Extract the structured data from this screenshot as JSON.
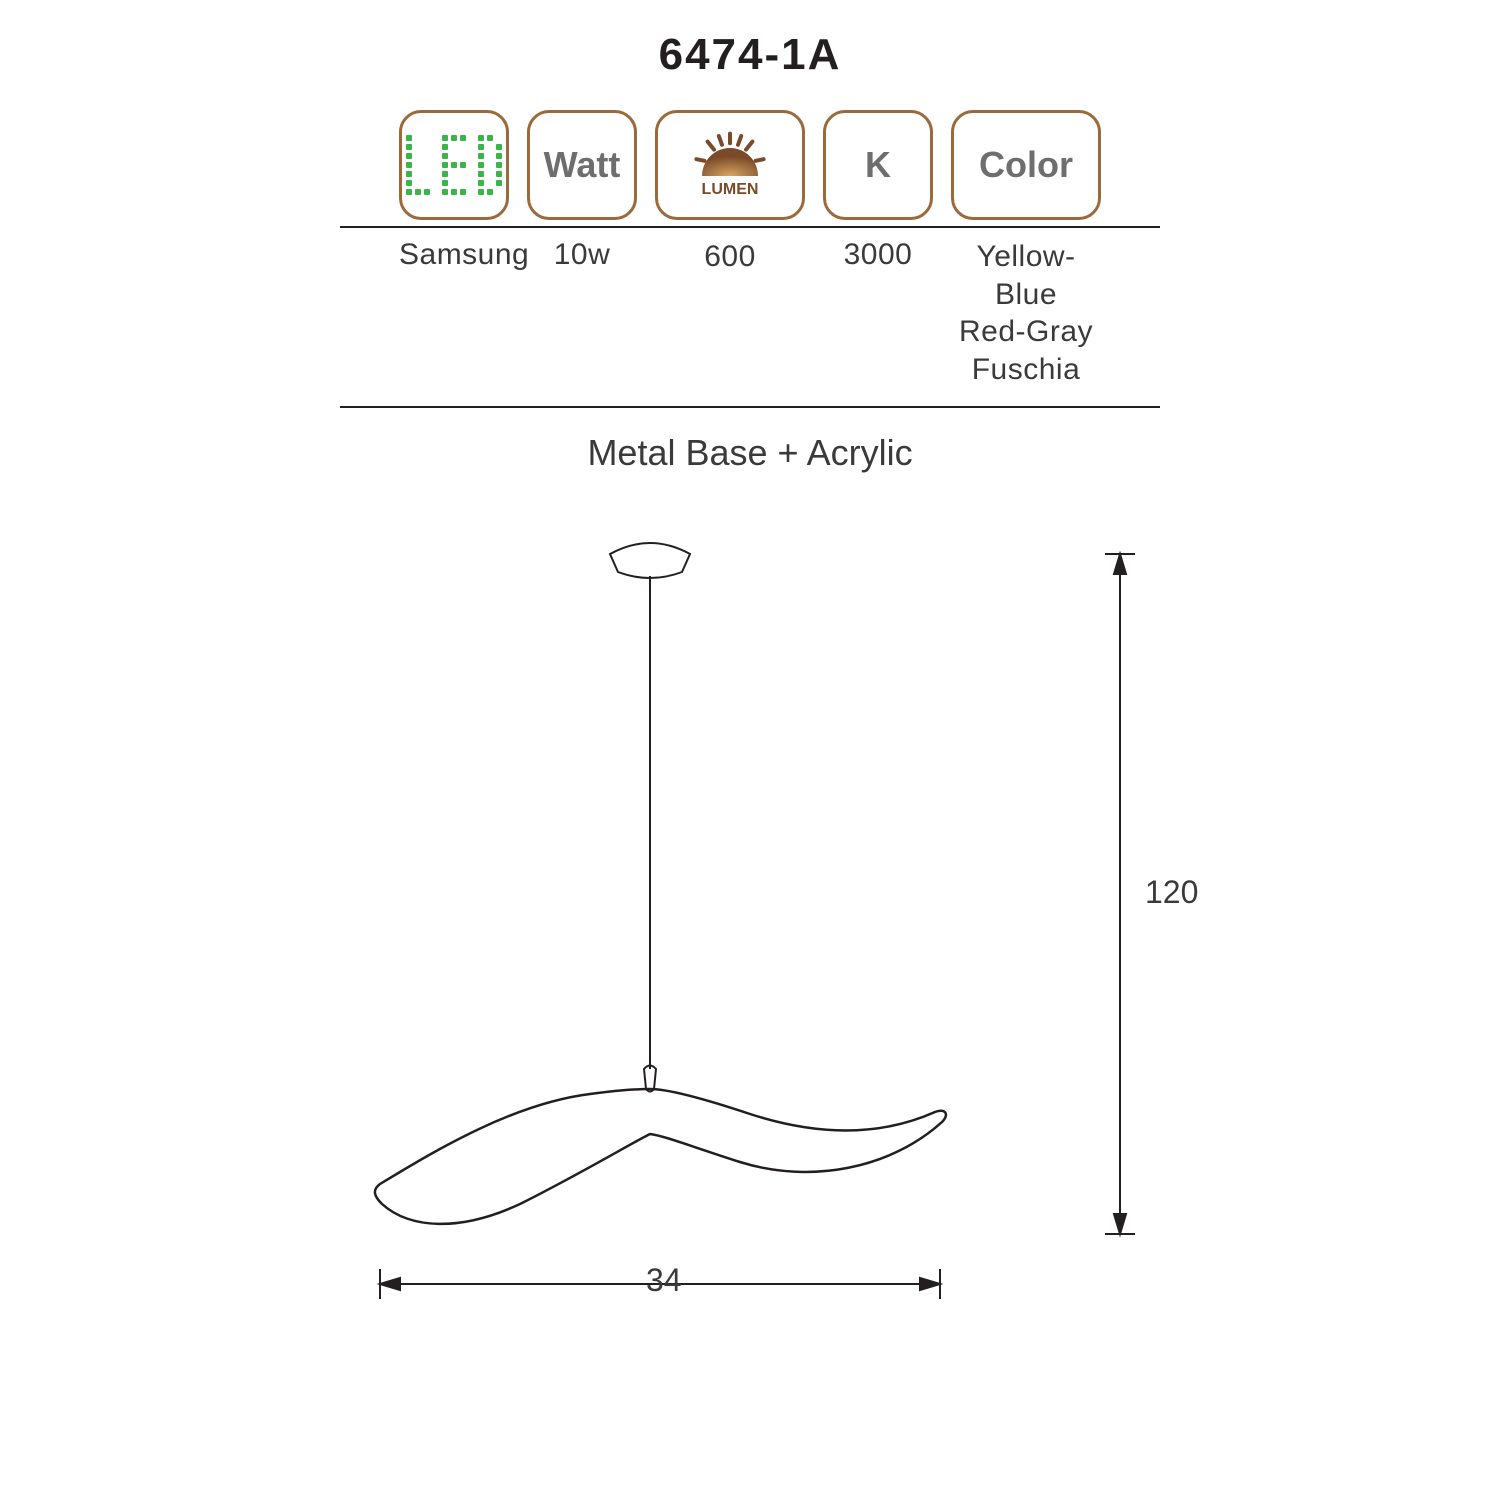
{
  "model": "6474-1A",
  "badge_border": "#9b6a3b",
  "badge_text": "#6e6e6e",
  "led_green": "#39b54a",
  "lumen_brown": "#8a5a2e",
  "line_color": "#231f20",
  "badges": {
    "led": "LED",
    "watt": "Watt",
    "lumen": "LUMEN",
    "kelvin": "K",
    "color": "Color"
  },
  "values": {
    "led": "Samsung",
    "watt": "10w",
    "lumen": "600",
    "kelvin": "3000",
    "color_l1": "Yellow-Blue",
    "color_l2": "Red-Gray",
    "color_l3": "Fuschia"
  },
  "material": "Metal Base + Acrylic",
  "dimensions": {
    "width": "34",
    "height": "120"
  },
  "led_matrix_cols": 11,
  "led_matrix_rows": 7,
  "led_letters": {
    "L": [
      [
        0,
        0
      ],
      [
        1,
        0
      ],
      [
        2,
        0
      ],
      [
        3,
        0
      ],
      [
        4,
        0
      ],
      [
        5,
        0
      ],
      [
        6,
        0
      ],
      [
        6,
        1
      ],
      [
        6,
        2
      ]
    ],
    "E": [
      [
        0,
        4
      ],
      [
        0,
        5
      ],
      [
        0,
        6
      ],
      [
        1,
        4
      ],
      [
        2,
        4
      ],
      [
        3,
        4
      ],
      [
        3,
        5
      ],
      [
        3,
        6
      ],
      [
        4,
        4
      ],
      [
        5,
        4
      ],
      [
        6,
        4
      ],
      [
        6,
        5
      ],
      [
        6,
        6
      ]
    ],
    "D": [
      [
        0,
        8
      ],
      [
        0,
        9
      ],
      [
        1,
        8
      ],
      [
        1,
        10
      ],
      [
        2,
        8
      ],
      [
        2,
        10
      ],
      [
        3,
        8
      ],
      [
        3,
        10
      ],
      [
        4,
        8
      ],
      [
        4,
        10
      ],
      [
        5,
        8
      ],
      [
        5,
        10
      ],
      [
        6,
        8
      ],
      [
        6,
        9
      ]
    ]
  }
}
